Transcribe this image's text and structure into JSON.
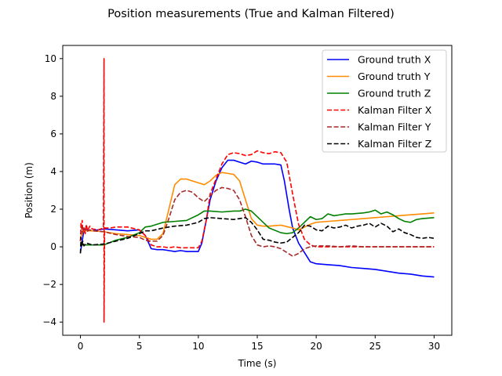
{
  "chart_data": {
    "type": "line",
    "title": "Position measurements (True and Kalman Filtered)",
    "xlabel": "Time (s)",
    "ylabel": "Position (m)",
    "xlim": [
      -1.5,
      31.5
    ],
    "ylim": [
      -4.7,
      10.7
    ],
    "xticks": [
      0,
      5,
      10,
      15,
      20,
      25,
      30
    ],
    "yticks": [
      -4,
      -2,
      0,
      2,
      4,
      6,
      8,
      10
    ],
    "grid": false,
    "legend_position": "top-right",
    "series": [
      {
        "name": "Ground truth X",
        "color": "#0000ff",
        "dash": "solid",
        "x": [
          0,
          0.3,
          1,
          2,
          3,
          4,
          5,
          5.5,
          6,
          6.5,
          7,
          7.5,
          8,
          8.5,
          9,
          9.5,
          10,
          10.3,
          10.7,
          11,
          11.5,
          12,
          12.5,
          13,
          13.5,
          14,
          14.5,
          15,
          15.5,
          16,
          16.5,
          17,
          17.3,
          17.7,
          18,
          18.5,
          19,
          19.5,
          20,
          21,
          22,
          23,
          24,
          25,
          26,
          27,
          28,
          29,
          30
        ],
        "y": [
          -0.3,
          0.9,
          0.85,
          0.95,
          0.9,
          0.85,
          0.9,
          0.6,
          -0.1,
          -0.15,
          -0.15,
          -0.2,
          -0.25,
          -0.2,
          -0.25,
          -0.25,
          -0.25,
          0.2,
          1.5,
          2.5,
          3.5,
          4.2,
          4.6,
          4.6,
          4.5,
          4.4,
          4.55,
          4.5,
          4.4,
          4.4,
          4.4,
          4.35,
          3.5,
          2.0,
          1.0,
          0.2,
          -0.3,
          -0.8,
          -0.9,
          -0.95,
          -1.0,
          -1.1,
          -1.15,
          -1.2,
          -1.3,
          -1.4,
          -1.45,
          -1.55,
          -1.6
        ]
      },
      {
        "name": "Ground truth Y",
        "color": "#ff8c00",
        "dash": "solid",
        "x": [
          0,
          0.3,
          1,
          2,
          3,
          4,
          5,
          5.5,
          6,
          6.5,
          7,
          7.5,
          8,
          8.5,
          9,
          9.5,
          10,
          10.5,
          11,
          11.5,
          12,
          12.5,
          13,
          13.5,
          14,
          14.5,
          15,
          15.5,
          16,
          17,
          18,
          18.5,
          19,
          19.5,
          20,
          21,
          22,
          23,
          24,
          25,
          26,
          27,
          28,
          29,
          30
        ],
        "y": [
          0.5,
          0.85,
          0.85,
          0.8,
          0.7,
          0.65,
          0.6,
          0.5,
          0.4,
          0.4,
          0.7,
          2.0,
          3.3,
          3.6,
          3.6,
          3.5,
          3.4,
          3.3,
          3.5,
          3.8,
          3.95,
          3.9,
          3.85,
          3.5,
          2.5,
          1.5,
          1.15,
          1.1,
          1.1,
          1.15,
          1.0,
          0.9,
          1.05,
          1.2,
          1.3,
          1.35,
          1.4,
          1.45,
          1.5,
          1.55,
          1.6,
          1.65,
          1.7,
          1.75,
          1.8
        ]
      },
      {
        "name": "Ground truth Z",
        "color": "#008000",
        "dash": "solid",
        "x": [
          0,
          1,
          2,
          3,
          4,
          5,
          5.5,
          6,
          7,
          8,
          9,
          10,
          10.5,
          11,
          12,
          13,
          13.5,
          14,
          14.5,
          15,
          16,
          17,
          17.5,
          18,
          18.5,
          19,
          19.5,
          20,
          20.5,
          21,
          21.5,
          22,
          22.5,
          23,
          24,
          24.5,
          25,
          25.5,
          26,
          26.5,
          27,
          27.5,
          28,
          28.5,
          29,
          30
        ],
        "y": [
          0.1,
          0.1,
          0.1,
          0.35,
          0.5,
          0.75,
          1.05,
          1.1,
          1.3,
          1.35,
          1.4,
          1.7,
          1.9,
          1.9,
          1.85,
          1.9,
          1.9,
          2.0,
          1.9,
          1.6,
          1.0,
          0.75,
          0.7,
          0.75,
          1.0,
          1.3,
          1.6,
          1.45,
          1.5,
          1.75,
          1.65,
          1.7,
          1.75,
          1.75,
          1.8,
          1.85,
          1.95,
          1.75,
          1.85,
          1.7,
          1.5,
          1.35,
          1.3,
          1.45,
          1.5,
          1.55
        ]
      },
      {
        "name": "Kalman Filter X",
        "color": "#ff0000",
        "dash": "dashed",
        "x": [
          0,
          0.05,
          0.1,
          0.15,
          0.2,
          0.3,
          0.4,
          0.5,
          0.6,
          0.8,
          1.0,
          1.5,
          1.95,
          2.0,
          2.0,
          2.05,
          2.5,
          3,
          4,
          5,
          5.5,
          6,
          6.5,
          7,
          7.5,
          8,
          8.5,
          9,
          9.5,
          10,
          10.3,
          10.7,
          11,
          11.5,
          12,
          12.5,
          13,
          13.5,
          14,
          14.5,
          15,
          15.5,
          16,
          16.5,
          17,
          17.5,
          18,
          18.5,
          19,
          19.5,
          20,
          21,
          22,
          23,
          24,
          25,
          26,
          27,
          28,
          29,
          30
        ],
        "y": [
          0.3,
          1.3,
          0.9,
          1.4,
          0.8,
          1.0,
          0.7,
          1.2,
          0.85,
          1.1,
          0.95,
          0.9,
          1.0,
          10.0,
          -4.0,
          1.0,
          1.0,
          1.05,
          1.05,
          0.9,
          0.6,
          0.1,
          0.0,
          0.0,
          -0.05,
          0.0,
          -0.05,
          -0.05,
          -0.05,
          -0.05,
          0.3,
          1.5,
          2.8,
          3.6,
          4.4,
          4.9,
          5.0,
          4.95,
          4.85,
          4.9,
          5.1,
          5.0,
          4.95,
          5.05,
          5.0,
          4.5,
          2.8,
          1.2,
          0.4,
          0.1,
          0.0,
          0.0,
          0.0,
          0.0,
          0.0,
          0.0,
          0.0,
          0.0,
          0.0,
          0.0,
          0.0
        ]
      },
      {
        "name": "Kalman Filter Y",
        "color": "#a52a2a",
        "dash": "dashed",
        "x": [
          0,
          0.1,
          0.2,
          0.3,
          0.5,
          0.8,
          1,
          2,
          3,
          4,
          5,
          5.5,
          6,
          6.5,
          7,
          7.5,
          8,
          8.5,
          9,
          9.5,
          10,
          10.5,
          11,
          11.5,
          12,
          12.5,
          13,
          13.5,
          14,
          14.5,
          15,
          15.5,
          16,
          16.5,
          17,
          17.5,
          18,
          18.5,
          19,
          19.5,
          20,
          21,
          22,
          23,
          24,
          25,
          26,
          27,
          28,
          29,
          30
        ],
        "y": [
          0.3,
          1.1,
          0.7,
          1.0,
          0.8,
          0.9,
          0.85,
          0.8,
          0.65,
          0.55,
          0.5,
          0.35,
          0.3,
          0.3,
          0.6,
          1.5,
          2.5,
          2.9,
          3.0,
          2.9,
          2.6,
          2.4,
          2.7,
          3.0,
          3.15,
          3.1,
          3.0,
          2.5,
          1.6,
          0.6,
          0.1,
          0.0,
          0.05,
          0.0,
          -0.1,
          -0.3,
          -0.5,
          -0.35,
          -0.1,
          0.0,
          0.05,
          0.05,
          0.0,
          0.05,
          0.0,
          0.0,
          0.0,
          0.0,
          0.0,
          0.0,
          0.0
        ]
      },
      {
        "name": "Kalman Filter Z",
        "color": "#000000",
        "dash": "dashed",
        "x": [
          0,
          0.05,
          0.1,
          0.2,
          0.3,
          0.5,
          1,
          2,
          3,
          4,
          5,
          5.5,
          6,
          7,
          8,
          9,
          10,
          10.5,
          11,
          12,
          13,
          13.5,
          14,
          14.5,
          15,
          15.5,
          16,
          16.5,
          17,
          17.5,
          18,
          18.5,
          19,
          19.5,
          20,
          20.5,
          21,
          21.5,
          22,
          22.5,
          23,
          23.5,
          24,
          24.5,
          25,
          25.5,
          26,
          26.5,
          27,
          27.5,
          28,
          28.5,
          29,
          29.5,
          30
        ],
        "y": [
          -0.35,
          0.5,
          0.0,
          0.3,
          0.05,
          0.2,
          0.1,
          0.15,
          0.3,
          0.45,
          0.7,
          0.85,
          0.85,
          1.0,
          1.1,
          1.15,
          1.3,
          1.5,
          1.55,
          1.5,
          1.45,
          1.5,
          1.55,
          1.3,
          0.9,
          0.4,
          0.35,
          0.25,
          0.2,
          0.25,
          0.5,
          0.75,
          1.15,
          1.1,
          0.9,
          0.85,
          1.1,
          1.0,
          1.05,
          1.15,
          1.0,
          1.1,
          1.15,
          1.25,
          1.05,
          1.25,
          1.1,
          0.8,
          0.95,
          0.75,
          0.65,
          0.5,
          0.45,
          0.5,
          0.45
        ]
      }
    ]
  }
}
